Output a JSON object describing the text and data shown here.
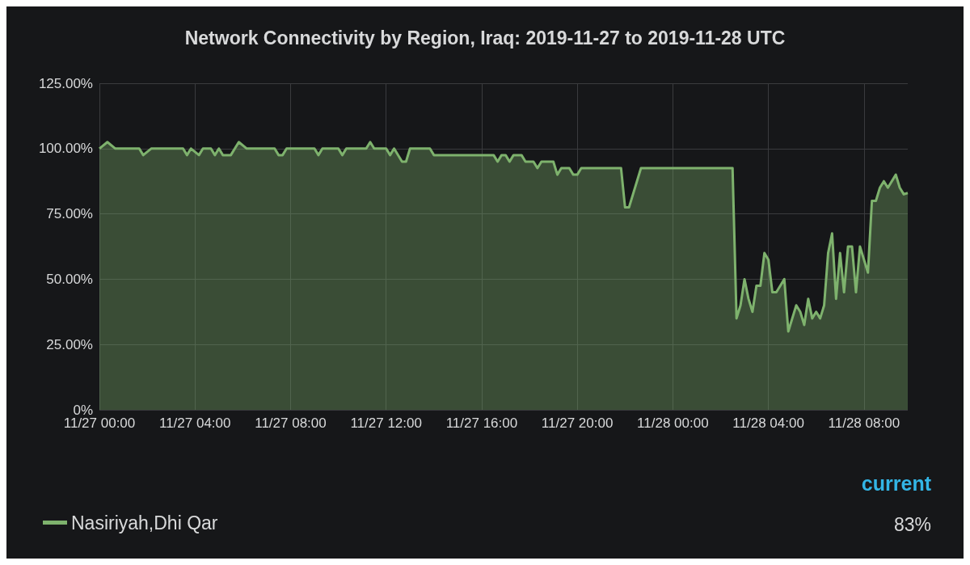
{
  "chart_data": {
    "type": "area",
    "title": "Network Connectivity by Region, Iraq: 2019-11-27 to 2019-11-28 UTC",
    "x": [
      "2019-11-27T00:00",
      "2019-11-27T00:20",
      "2019-11-27T00:40",
      "2019-11-27T01:40",
      "2019-11-27T01:50",
      "2019-11-27T02:10",
      "2019-11-27T03:30",
      "2019-11-27T03:40",
      "2019-11-27T03:50",
      "2019-11-27T04:10",
      "2019-11-27T04:20",
      "2019-11-27T04:40",
      "2019-11-27T04:50",
      "2019-11-27T05:00",
      "2019-11-27T05:10",
      "2019-11-27T05:30",
      "2019-11-27T05:50",
      "2019-11-27T06:10",
      "2019-11-27T07:20",
      "2019-11-27T07:30",
      "2019-11-27T07:40",
      "2019-11-27T07:50",
      "2019-11-27T09:00",
      "2019-11-27T09:10",
      "2019-11-27T09:20",
      "2019-11-27T10:00",
      "2019-11-27T10:10",
      "2019-11-27T10:20",
      "2019-11-27T11:10",
      "2019-11-27T11:20",
      "2019-11-27T11:30",
      "2019-11-27T12:00",
      "2019-11-27T12:10",
      "2019-11-27T12:20",
      "2019-11-27T12:40",
      "2019-11-27T12:50",
      "2019-11-27T13:00",
      "2019-11-27T13:50",
      "2019-11-27T14:00",
      "2019-11-27T16:30",
      "2019-11-27T16:40",
      "2019-11-27T16:50",
      "2019-11-27T17:00",
      "2019-11-27T17:10",
      "2019-11-27T17:20",
      "2019-11-27T17:40",
      "2019-11-27T17:50",
      "2019-11-27T18:10",
      "2019-11-27T18:20",
      "2019-11-27T18:30",
      "2019-11-27T19:00",
      "2019-11-27T19:10",
      "2019-11-27T19:20",
      "2019-11-27T19:40",
      "2019-11-27T19:50",
      "2019-11-27T20:00",
      "2019-11-27T20:10",
      "2019-11-27T21:50",
      "2019-11-27T22:00",
      "2019-11-27T22:10",
      "2019-11-27T22:40",
      "2019-11-28T02:30",
      "2019-11-28T02:40",
      "2019-11-28T02:50",
      "2019-11-28T03:00",
      "2019-11-28T03:10",
      "2019-11-28T03:20",
      "2019-11-28T03:30",
      "2019-11-28T03:40",
      "2019-11-28T03:50",
      "2019-11-28T04:00",
      "2019-11-28T04:10",
      "2019-11-28T04:20",
      "2019-11-28T04:40",
      "2019-11-28T04:50",
      "2019-11-28T05:10",
      "2019-11-28T05:20",
      "2019-11-28T05:30",
      "2019-11-28T05:40",
      "2019-11-28T05:50",
      "2019-11-28T06:00",
      "2019-11-28T06:10",
      "2019-11-28T06:20",
      "2019-11-28T06:30",
      "2019-11-28T06:40",
      "2019-11-28T06:50",
      "2019-11-28T07:00",
      "2019-11-28T07:10",
      "2019-11-28T07:20",
      "2019-11-28T07:30",
      "2019-11-28T07:40",
      "2019-11-28T07:50",
      "2019-11-28T08:10",
      "2019-11-28T08:20",
      "2019-11-28T08:30",
      "2019-11-28T08:40",
      "2019-11-28T08:50",
      "2019-11-28T09:00",
      "2019-11-28T09:20",
      "2019-11-28T09:30",
      "2019-11-28T09:40",
      "2019-11-28T09:50"
    ],
    "series": [
      {
        "name": "Nasiriyah,Dhi Qar",
        "color": "#7eb26d",
        "values": [
          100,
          102.5,
          100,
          100,
          97.5,
          100,
          100,
          97.5,
          100,
          97.5,
          100,
          100,
          97.5,
          100,
          97.5,
          97.5,
          102.5,
          100,
          100,
          97.5,
          97.5,
          100,
          100,
          97.5,
          100,
          100,
          97.5,
          100,
          100,
          102.5,
          100,
          100,
          97.5,
          100,
          95,
          95,
          100,
          100,
          97.5,
          97.5,
          95,
          97.5,
          97.5,
          95,
          97.5,
          97.5,
          95,
          95,
          92.5,
          95,
          95,
          90,
          92.5,
          92.5,
          90,
          90,
          92.5,
          92.5,
          77.5,
          77.5,
          92.5,
          92.5,
          35,
          40,
          50,
          42.5,
          37.5,
          47.5,
          47.5,
          60,
          57.5,
          45,
          45,
          50,
          30,
          40,
          37.5,
          32.5,
          42.5,
          35,
          37.5,
          35,
          40,
          60,
          67.5,
          42.5,
          60,
          45,
          62.5,
          62.5,
          45,
          62.5,
          52.5,
          80,
          80,
          85,
          87.5,
          85,
          90,
          85,
          82.5,
          83
        ]
      }
    ],
    "xlim": [
      "2019-11-27T00:00",
      "2019-11-28T09:50"
    ],
    "xticks": [
      {
        "value": "2019-11-27T00:00",
        "label": "11/27 00:00"
      },
      {
        "value": "2019-11-27T04:00",
        "label": "11/27 04:00"
      },
      {
        "value": "2019-11-27T08:00",
        "label": "11/27 08:00"
      },
      {
        "value": "2019-11-27T12:00",
        "label": "11/27 12:00"
      },
      {
        "value": "2019-11-27T16:00",
        "label": "11/27 16:00"
      },
      {
        "value": "2019-11-27T20:00",
        "label": "11/27 20:00"
      },
      {
        "value": "2019-11-28T00:00",
        "label": "11/28 00:00"
      },
      {
        "value": "2019-11-28T04:00",
        "label": "11/28 04:00"
      },
      {
        "value": "2019-11-28T08:00",
        "label": "11/28 08:00"
      }
    ],
    "ylim": [
      0,
      125
    ],
    "yticks": [
      {
        "value": 0,
        "label": "0%"
      },
      {
        "value": 25,
        "label": "25.00%"
      },
      {
        "value": 50,
        "label": "50.00%"
      },
      {
        "value": 75,
        "label": "75.00%"
      },
      {
        "value": 100,
        "label": "100.00%"
      },
      {
        "value": 125,
        "label": "125.00%"
      }
    ],
    "grid": true,
    "legend": "bottom",
    "marker": "none",
    "annotations": [
      "current",
      "83%"
    ]
  }
}
